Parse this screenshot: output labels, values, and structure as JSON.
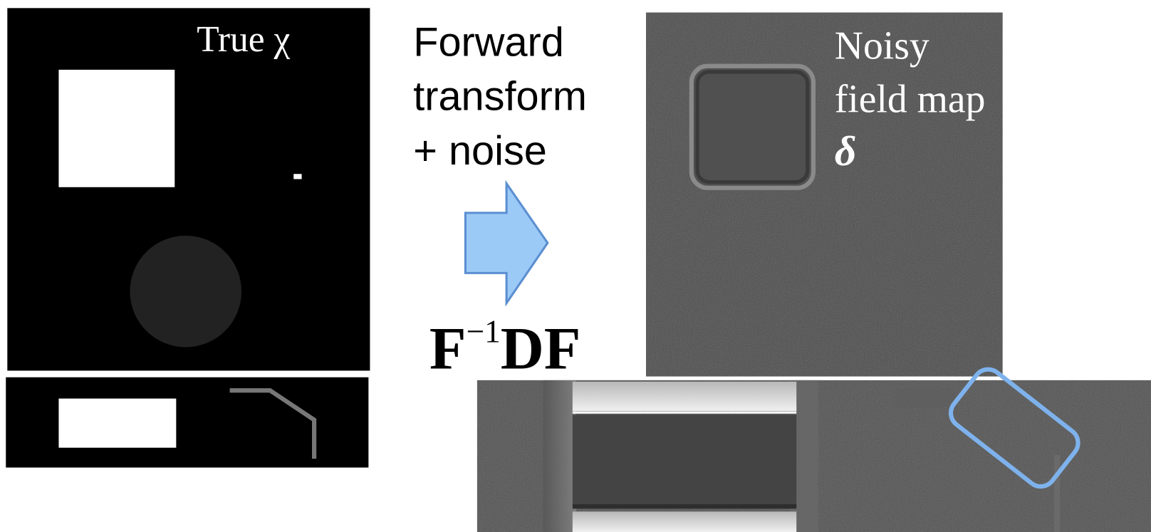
{
  "true_chi": {
    "label": "True χ"
  },
  "process": {
    "lines": [
      "Forward",
      "transform",
      "+ noise"
    ],
    "operator": {
      "base": "F",
      "superscript": "−1",
      "rest": "DF"
    }
  },
  "noisy_map": {
    "lines": [
      "Noisy",
      "field map",
      "δ"
    ]
  }
}
